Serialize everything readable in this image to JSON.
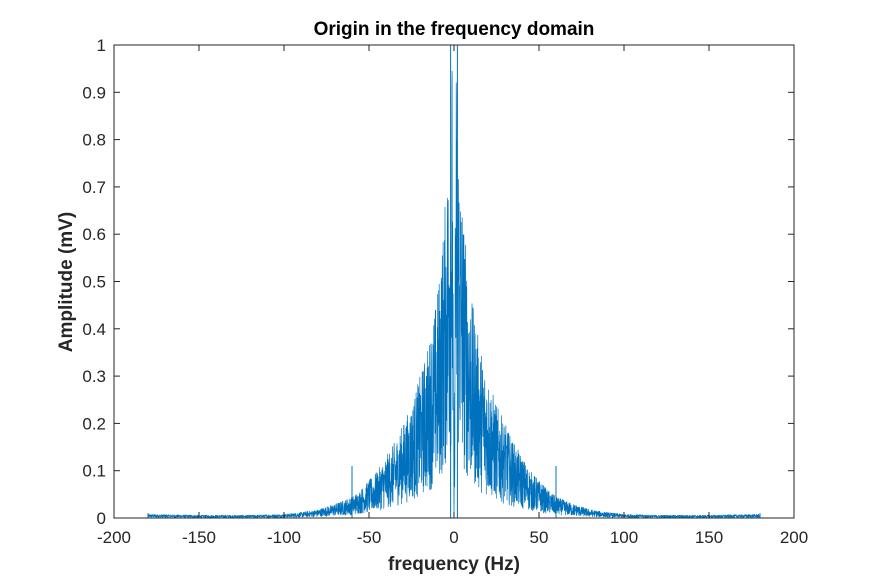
{
  "chart_data": {
    "type": "line",
    "title": "Origin in the frequency domain",
    "xlabel": "frequency (Hz)",
    "ylabel": "Amplitude (mV)",
    "xlim": [
      -200,
      200
    ],
    "ylim": [
      0,
      1
    ],
    "xticks": [
      -200,
      -150,
      -100,
      -50,
      0,
      50,
      100,
      150,
      200
    ],
    "yticks": [
      0,
      0.1,
      0.2,
      0.3,
      0.4,
      0.5,
      0.6,
      0.7,
      0.8,
      0.9,
      1
    ],
    "x_range_of_signal": [
      -180,
      180
    ],
    "grid": false,
    "legend": "none",
    "colors": {
      "series": "#0072BD",
      "axes": "#262626",
      "background": "#ffffff"
    },
    "series": [
      {
        "style": "line",
        "envelope_x": [
          -180,
          -150,
          -120,
          -100,
          -90,
          -80,
          -70,
          -60,
          -55,
          -50,
          -45,
          -40,
          -35,
          -30,
          -25,
          -20,
          -15,
          -10,
          -7,
          -5,
          -3,
          -2,
          -1,
          0,
          1,
          2,
          3,
          5,
          7,
          10,
          15,
          20,
          25,
          30,
          35,
          40,
          45,
          50,
          55,
          60,
          70,
          80,
          90,
          100,
          120,
          150,
          180
        ],
        "envelope_y": [
          0.008,
          0.006,
          0.006,
          0.008,
          0.012,
          0.018,
          0.03,
          0.045,
          0.06,
          0.08,
          0.1,
          0.13,
          0.16,
          0.2,
          0.24,
          0.3,
          0.37,
          0.47,
          0.58,
          0.68,
          0.8,
          0.9,
          1.0,
          0.0,
          1.0,
          0.9,
          0.8,
          0.68,
          0.58,
          0.47,
          0.37,
          0.3,
          0.24,
          0.2,
          0.16,
          0.13,
          0.1,
          0.08,
          0.06,
          0.045,
          0.03,
          0.018,
          0.012,
          0.008,
          0.006,
          0.006,
          0.008
        ],
        "spikes": [
          {
            "x": -180,
            "y": 0.01
          },
          {
            "x": -60,
            "y": 0.11
          },
          {
            "x": -2,
            "y": 1.0
          },
          {
            "x": 2,
            "y": 1.0
          },
          {
            "x": 60,
            "y": 0.11
          },
          {
            "x": 180,
            "y": 0.01
          }
        ]
      }
    ]
  }
}
